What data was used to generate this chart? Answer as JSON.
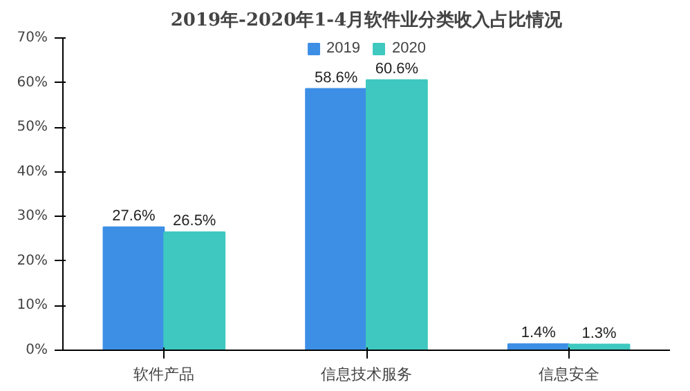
{
  "chart_data": {
    "type": "bar",
    "title": "2019年-2020年1-4月软件业分类收入占比情况",
    "categories": [
      "软件产品",
      "信息技术服务",
      "信息安全"
    ],
    "series": [
      {
        "name": "2019",
        "color": "#3d8fe6",
        "values": [
          27.6,
          58.6,
          1.4
        ],
        "value_labels": [
          "27.6%",
          "58.6%",
          "1.4%"
        ]
      },
      {
        "name": "2020",
        "color": "#3ec8c0",
        "values": [
          26.5,
          60.6,
          1.3
        ],
        "value_labels": [
          "26.5%",
          "60.6%",
          "1.3%"
        ]
      }
    ],
    "ylim": [
      0,
      70
    ],
    "yticks": [
      {
        "value": 0,
        "label": "0%"
      },
      {
        "value": 10,
        "label": "10%"
      },
      {
        "value": 20,
        "label": "20%"
      },
      {
        "value": 30,
        "label": "30%"
      },
      {
        "value": 40,
        "label": "40%"
      },
      {
        "value": 50,
        "label": "50%"
      },
      {
        "value": 60,
        "label": "60%"
      },
      {
        "value": 70,
        "label": "70%"
      }
    ],
    "legend": "top"
  }
}
